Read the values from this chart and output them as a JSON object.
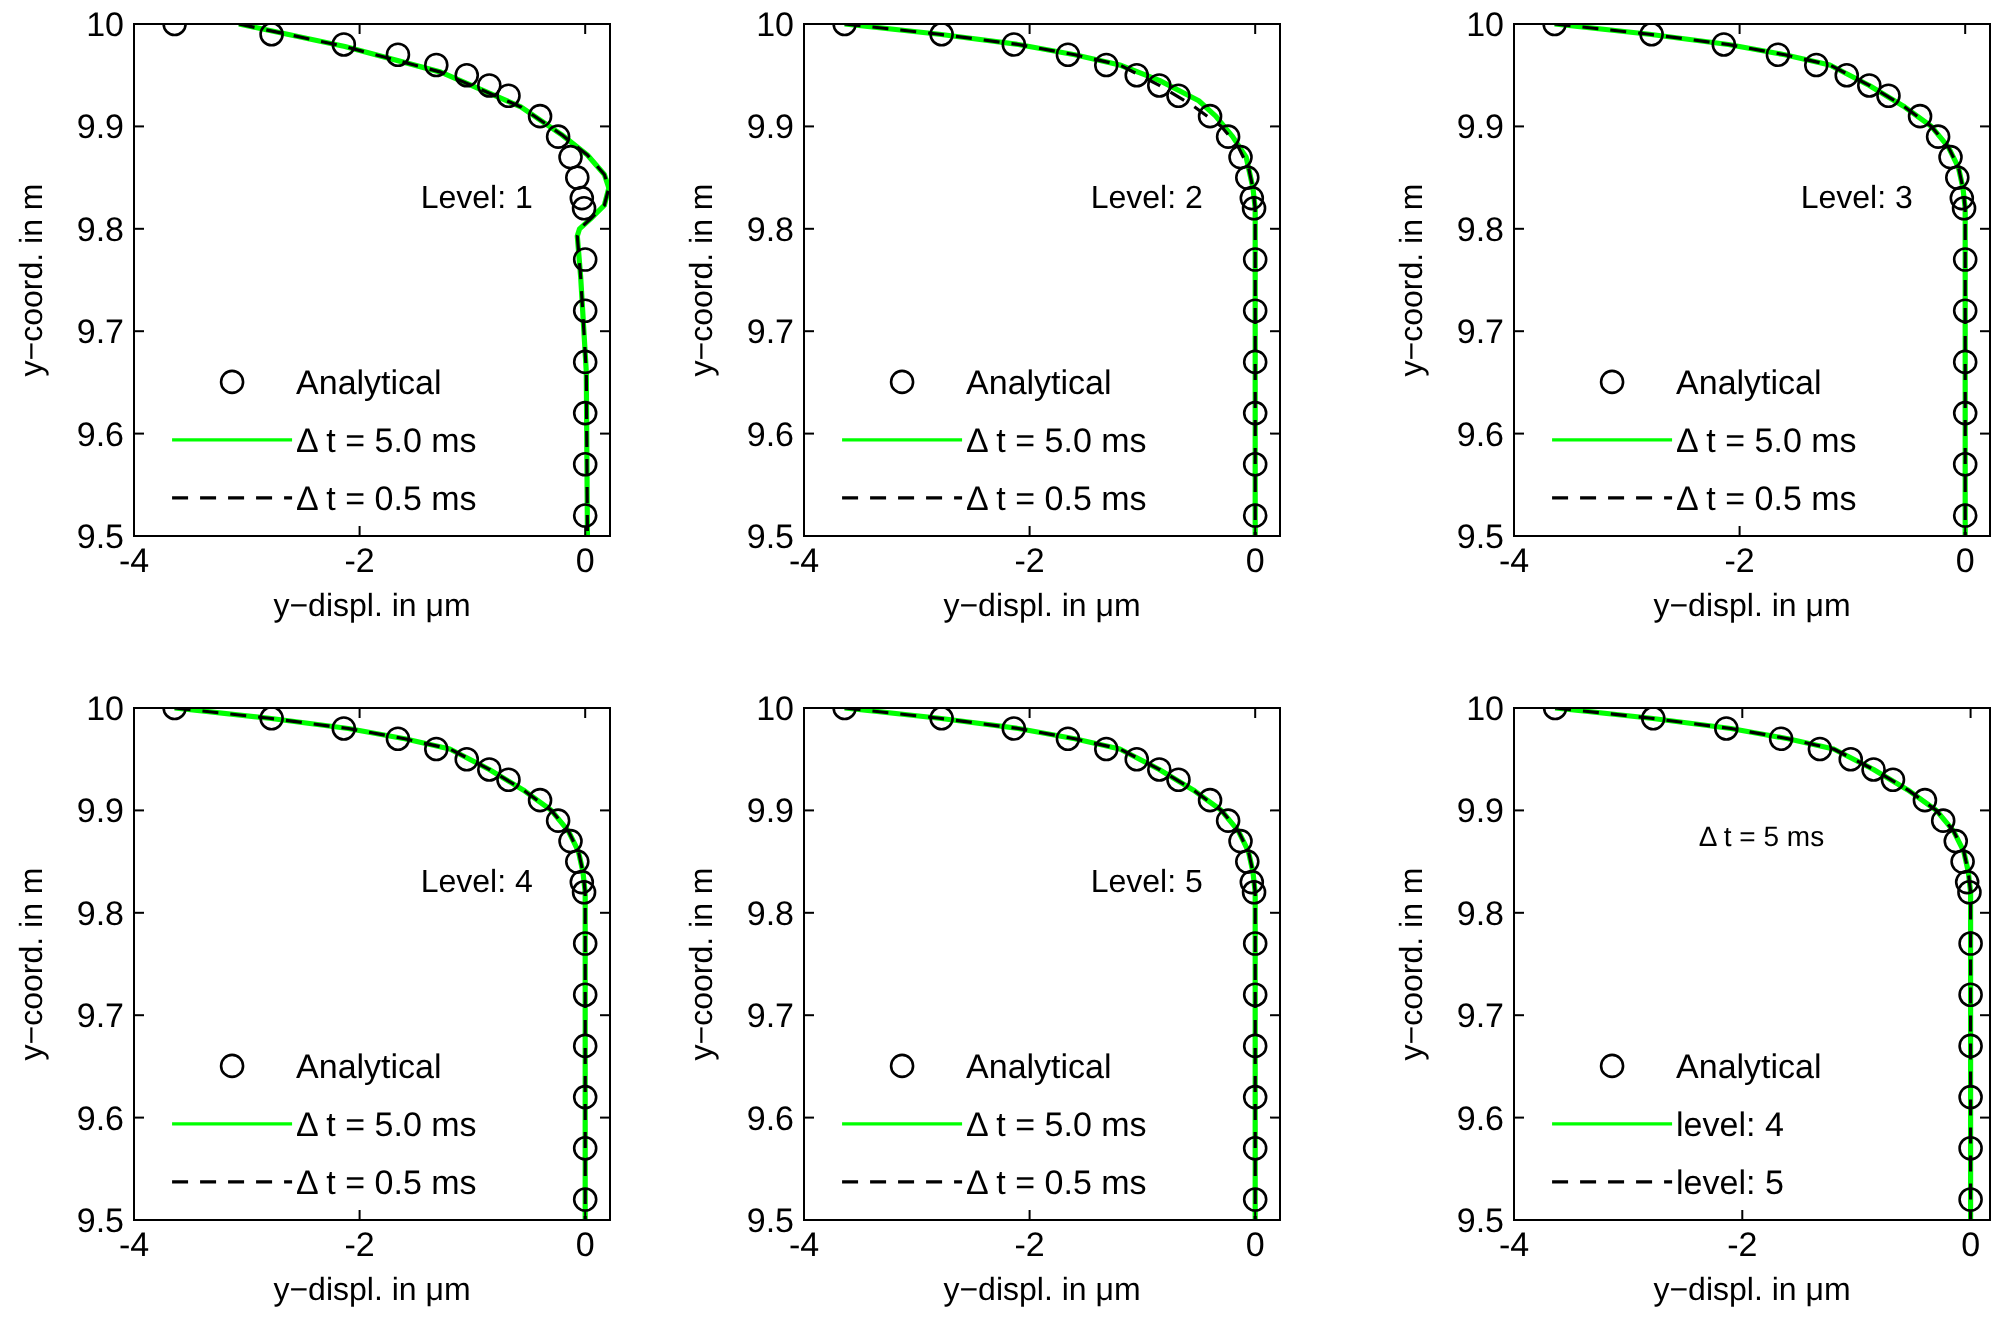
{
  "chart_data": [
    {
      "type": "line",
      "xlabel": "y−displ.  in μm",
      "ylabel": "y−coord. in m",
      "annotations": [
        "Level: 1"
      ],
      "xlim": [
        -4,
        0.22
      ],
      "ylim": [
        9.5,
        10
      ],
      "xticks": [
        -4,
        -2,
        0
      ],
      "yticks": [
        9.5,
        9.6,
        9.7,
        9.8,
        9.9,
        10
      ],
      "grid": false,
      "legend": "bottom left",
      "series": [
        {
          "name": "Analytical",
          "type": "scatter",
          "marker": "circle",
          "color": "#000000",
          "x": [
            -3.64,
            -2.78,
            -2.14,
            -1.66,
            -1.32,
            -1.05,
            -0.85,
            -0.68,
            -0.4,
            -0.24,
            -0.13,
            -0.07,
            -0.03,
            -0.01,
            0,
            0,
            0,
            0,
            0,
            0
          ],
          "values": [
            10,
            9.99,
            9.98,
            9.97,
            9.96,
            9.95,
            9.94,
            9.93,
            9.91,
            9.89,
            9.87,
            9.85,
            9.83,
            9.82,
            9.77,
            9.72,
            9.67,
            9.62,
            9.57,
            9.52
          ]
        },
        {
          "name": "Δ t = 5.0 ms",
          "type": "line",
          "line_style": "solid",
          "color": "#00ff00",
          "x": [
            -3.07,
            -2.13,
            -1.28,
            -0.57,
            -0.21,
            0.02,
            0.17,
            0.21,
            0.17,
            0.05,
            -0.05,
            -0.07,
            -0.04,
            0.01,
            0.02
          ],
          "values": [
            10,
            9.978,
            9.953,
            9.919,
            9.892,
            9.872,
            9.853,
            9.84,
            9.823,
            9.81,
            9.8,
            9.793,
            9.753,
            9.66,
            9.5
          ]
        },
        {
          "name": "Δ t = 0.5 ms",
          "type": "line",
          "line_style": "dashed",
          "color": "#000000",
          "x": [
            -3.07,
            -2.13,
            -1.28,
            -0.57,
            -0.21,
            0.02,
            0.17,
            0.21,
            0.17,
            0.05,
            -0.05,
            -0.07,
            -0.04,
            0.01,
            0.02
          ],
          "values": [
            10,
            9.978,
            9.953,
            9.919,
            9.892,
            9.872,
            9.853,
            9.84,
            9.823,
            9.81,
            9.8,
            9.793,
            9.753,
            9.66,
            9.5
          ]
        }
      ]
    },
    {
      "type": "line",
      "xlabel": "y−displ.  in μm",
      "ylabel": "y−coord. in m",
      "annotations": [
        "Level: 2"
      ],
      "xlim": [
        -4,
        0.22
      ],
      "ylim": [
        9.5,
        10
      ],
      "xticks": [
        -4,
        -2,
        0
      ],
      "yticks": [
        9.5,
        9.6,
        9.7,
        9.8,
        9.9,
        10
      ],
      "grid": false,
      "legend": "bottom left",
      "series": [
        {
          "name": "Analytical",
          "type": "scatter",
          "marker": "circle",
          "color": "#000000",
          "x": [
            -3.64,
            -2.78,
            -2.14,
            -1.66,
            -1.32,
            -1.05,
            -0.85,
            -0.68,
            -0.4,
            -0.24,
            -0.13,
            -0.07,
            -0.03,
            -0.01,
            0,
            0,
            0,
            0,
            0,
            0
          ],
          "values": [
            10,
            9.99,
            9.98,
            9.97,
            9.96,
            9.95,
            9.94,
            9.93,
            9.91,
            9.89,
            9.87,
            9.85,
            9.83,
            9.82,
            9.77,
            9.72,
            9.67,
            9.62,
            9.57,
            9.52
          ]
        },
        {
          "name": "Δ t = 5.0 ms",
          "type": "line",
          "line_style": "solid",
          "color": "#00ff00",
          "x": [
            -3.64,
            -2.8,
            -2.1,
            -1.6,
            -1.2,
            -0.85,
            -0.5,
            -0.35,
            -0.2,
            -0.08,
            -0.02,
            0,
            0
          ],
          "values": [
            10,
            9.99,
            9.98,
            9.97,
            9.96,
            9.945,
            9.925,
            9.91,
            9.89,
            9.87,
            9.84,
            9.82,
            9.5
          ]
        },
        {
          "name": "Δ t = 0.5 ms",
          "type": "line",
          "line_style": "dashed",
          "color": "#000000",
          "x": [
            -3.64,
            -2.8,
            -2.1,
            -1.6,
            -1.2,
            -0.85,
            -0.55,
            -0.3,
            -0.15,
            -0.06,
            -0.02,
            0,
            0
          ],
          "values": [
            10,
            9.99,
            9.98,
            9.97,
            9.96,
            9.94,
            9.92,
            9.9,
            9.88,
            9.86,
            9.84,
            9.82,
            9.5
          ]
        }
      ]
    },
    {
      "type": "line",
      "xlabel": "y−displ.  in μm",
      "ylabel": "y−coord. in m",
      "annotations": [
        "Level: 3"
      ],
      "xlim": [
        -4,
        0.22
      ],
      "ylim": [
        9.5,
        10
      ],
      "xticks": [
        -4,
        -2,
        0
      ],
      "yticks": [
        9.5,
        9.6,
        9.7,
        9.8,
        9.9,
        10
      ],
      "grid": false,
      "legend": "bottom left",
      "series": [
        {
          "name": "Analytical",
          "type": "scatter",
          "marker": "circle",
          "color": "#000000",
          "x": [
            -3.64,
            -2.78,
            -2.14,
            -1.66,
            -1.32,
            -1.05,
            -0.85,
            -0.68,
            -0.4,
            -0.24,
            -0.13,
            -0.07,
            -0.03,
            -0.01,
            0,
            0,
            0,
            0,
            0,
            0
          ],
          "values": [
            10,
            9.99,
            9.98,
            9.97,
            9.96,
            9.95,
            9.94,
            9.93,
            9.91,
            9.89,
            9.87,
            9.85,
            9.83,
            9.82,
            9.77,
            9.72,
            9.67,
            9.62,
            9.57,
            9.52
          ]
        },
        {
          "name": "Δ t = 5.0 ms",
          "type": "line",
          "line_style": "solid",
          "color": "#00ff00",
          "x": [
            -3.64,
            -2.8,
            -2.1,
            -1.6,
            -1.2,
            -0.85,
            -0.55,
            -0.3,
            -0.15,
            -0.06,
            -0.02,
            0,
            0
          ],
          "values": [
            10,
            9.99,
            9.98,
            9.97,
            9.96,
            9.94,
            9.92,
            9.9,
            9.88,
            9.86,
            9.84,
            9.82,
            9.5
          ]
        },
        {
          "name": "Δ t = 0.5 ms",
          "type": "line",
          "line_style": "dashed",
          "color": "#000000",
          "x": [
            -3.64,
            -2.8,
            -2.1,
            -1.6,
            -1.2,
            -0.85,
            -0.55,
            -0.3,
            -0.15,
            -0.06,
            -0.02,
            0,
            0
          ],
          "values": [
            10,
            9.99,
            9.98,
            9.97,
            9.96,
            9.94,
            9.92,
            9.9,
            9.88,
            9.86,
            9.84,
            9.82,
            9.5
          ]
        }
      ]
    },
    {
      "type": "line",
      "xlabel": "y−displ.  in μm",
      "ylabel": "y−coord. in m",
      "annotations": [
        "Level: 4"
      ],
      "xlim": [
        -4,
        0.22
      ],
      "ylim": [
        9.5,
        10
      ],
      "xticks": [
        -4,
        -2,
        0
      ],
      "yticks": [
        9.5,
        9.6,
        9.7,
        9.8,
        9.9,
        10
      ],
      "grid": false,
      "legend": "bottom left",
      "series": [
        {
          "name": "Analytical",
          "type": "scatter",
          "marker": "circle",
          "color": "#000000",
          "x": [
            -3.64,
            -2.78,
            -2.14,
            -1.66,
            -1.32,
            -1.05,
            -0.85,
            -0.68,
            -0.4,
            -0.24,
            -0.13,
            -0.07,
            -0.03,
            -0.01,
            0,
            0,
            0,
            0,
            0,
            0
          ],
          "values": [
            10,
            9.99,
            9.98,
            9.97,
            9.96,
            9.95,
            9.94,
            9.93,
            9.91,
            9.89,
            9.87,
            9.85,
            9.83,
            9.82,
            9.77,
            9.72,
            9.67,
            9.62,
            9.57,
            9.52
          ]
        },
        {
          "name": "Δ t = 5.0 ms",
          "type": "line",
          "line_style": "solid",
          "color": "#00ff00",
          "x": [
            -3.64,
            -2.8,
            -2.1,
            -1.6,
            -1.2,
            -0.85,
            -0.55,
            -0.3,
            -0.15,
            -0.06,
            -0.02,
            0,
            0
          ],
          "values": [
            10,
            9.99,
            9.98,
            9.97,
            9.96,
            9.94,
            9.92,
            9.9,
            9.88,
            9.86,
            9.84,
            9.82,
            9.5
          ]
        },
        {
          "name": "Δ t = 0.5 ms",
          "type": "line",
          "line_style": "dashed",
          "color": "#000000",
          "x": [
            -3.64,
            -2.8,
            -2.1,
            -1.6,
            -1.2,
            -0.85,
            -0.55,
            -0.3,
            -0.15,
            -0.06,
            -0.02,
            0,
            0
          ],
          "values": [
            10,
            9.99,
            9.98,
            9.97,
            9.96,
            9.94,
            9.92,
            9.9,
            9.88,
            9.86,
            9.84,
            9.82,
            9.5
          ]
        }
      ]
    },
    {
      "type": "line",
      "xlabel": "y−displ.  in μm",
      "ylabel": "y−coord. in m",
      "annotations": [
        "Level: 5"
      ],
      "xlim": [
        -4,
        0.22
      ],
      "ylim": [
        9.5,
        10
      ],
      "xticks": [
        -4,
        -2,
        0
      ],
      "yticks": [
        9.5,
        9.6,
        9.7,
        9.8,
        9.9,
        10
      ],
      "grid": false,
      "legend": "bottom left",
      "series": [
        {
          "name": "Analytical",
          "type": "scatter",
          "marker": "circle",
          "color": "#000000",
          "x": [
            -3.64,
            -2.78,
            -2.14,
            -1.66,
            -1.32,
            -1.05,
            -0.85,
            -0.68,
            -0.4,
            -0.24,
            -0.13,
            -0.07,
            -0.03,
            -0.01,
            0,
            0,
            0,
            0,
            0,
            0
          ],
          "values": [
            10,
            9.99,
            9.98,
            9.97,
            9.96,
            9.95,
            9.94,
            9.93,
            9.91,
            9.89,
            9.87,
            9.85,
            9.83,
            9.82,
            9.77,
            9.72,
            9.67,
            9.62,
            9.57,
            9.52
          ]
        },
        {
          "name": "Δ t = 5.0 ms",
          "type": "line",
          "line_style": "solid",
          "color": "#00ff00",
          "x": [
            -3.64,
            -2.8,
            -2.1,
            -1.6,
            -1.2,
            -0.85,
            -0.55,
            -0.3,
            -0.15,
            -0.06,
            -0.02,
            0,
            0
          ],
          "values": [
            10,
            9.99,
            9.98,
            9.97,
            9.96,
            9.94,
            9.92,
            9.9,
            9.88,
            9.86,
            9.84,
            9.82,
            9.5
          ]
        },
        {
          "name": "Δ t = 0.5 ms",
          "type": "line",
          "line_style": "dashed",
          "color": "#000000",
          "x": [
            -3.64,
            -2.8,
            -2.1,
            -1.6,
            -1.2,
            -0.85,
            -0.55,
            -0.3,
            -0.15,
            -0.06,
            -0.02,
            0,
            0
          ],
          "values": [
            10,
            9.99,
            9.98,
            9.97,
            9.96,
            9.94,
            9.92,
            9.9,
            9.88,
            9.86,
            9.84,
            9.82,
            9.5
          ]
        }
      ]
    },
    {
      "type": "line",
      "xlabel": "y−displ.  in μm",
      "ylabel": "y−coord. in m",
      "annotations": [
        "Δ t = 5 ms"
      ],
      "xlim": [
        -4,
        0.17
      ],
      "ylim": [
        9.5,
        10
      ],
      "xticks": [
        -4,
        -2,
        0
      ],
      "yticks": [
        9.5,
        9.6,
        9.7,
        9.8,
        9.9,
        10
      ],
      "grid": false,
      "legend": "bottom left",
      "series": [
        {
          "name": "Analytical",
          "type": "scatter",
          "marker": "circle",
          "color": "#000000",
          "x": [
            -3.64,
            -2.78,
            -2.14,
            -1.66,
            -1.32,
            -1.05,
            -0.85,
            -0.68,
            -0.4,
            -0.24,
            -0.13,
            -0.07,
            -0.03,
            -0.01,
            0,
            0,
            0,
            0,
            0,
            0
          ],
          "values": [
            10,
            9.99,
            9.98,
            9.97,
            9.96,
            9.95,
            9.94,
            9.93,
            9.91,
            9.89,
            9.87,
            9.85,
            9.83,
            9.82,
            9.77,
            9.72,
            9.67,
            9.62,
            9.57,
            9.52
          ]
        },
        {
          "name": "level: 4",
          "type": "line",
          "line_style": "solid",
          "color": "#00ff00",
          "x": [
            -3.64,
            -2.8,
            -2.1,
            -1.6,
            -1.2,
            -0.85,
            -0.55,
            -0.3,
            -0.15,
            -0.06,
            -0.02,
            0,
            0
          ],
          "values": [
            10,
            9.99,
            9.98,
            9.97,
            9.96,
            9.94,
            9.92,
            9.9,
            9.88,
            9.86,
            9.84,
            9.82,
            9.5
          ]
        },
        {
          "name": "level: 5",
          "type": "line",
          "line_style": "dashed",
          "color": "#000000",
          "x": [
            -3.64,
            -2.8,
            -2.1,
            -1.6,
            -1.2,
            -0.85,
            -0.55,
            -0.3,
            -0.15,
            -0.06,
            -0.02,
            0,
            0
          ],
          "values": [
            10,
            9.99,
            9.98,
            9.97,
            9.96,
            9.94,
            9.92,
            9.9,
            9.88,
            9.86,
            9.84,
            9.82,
            9.5
          ]
        }
      ]
    }
  ]
}
